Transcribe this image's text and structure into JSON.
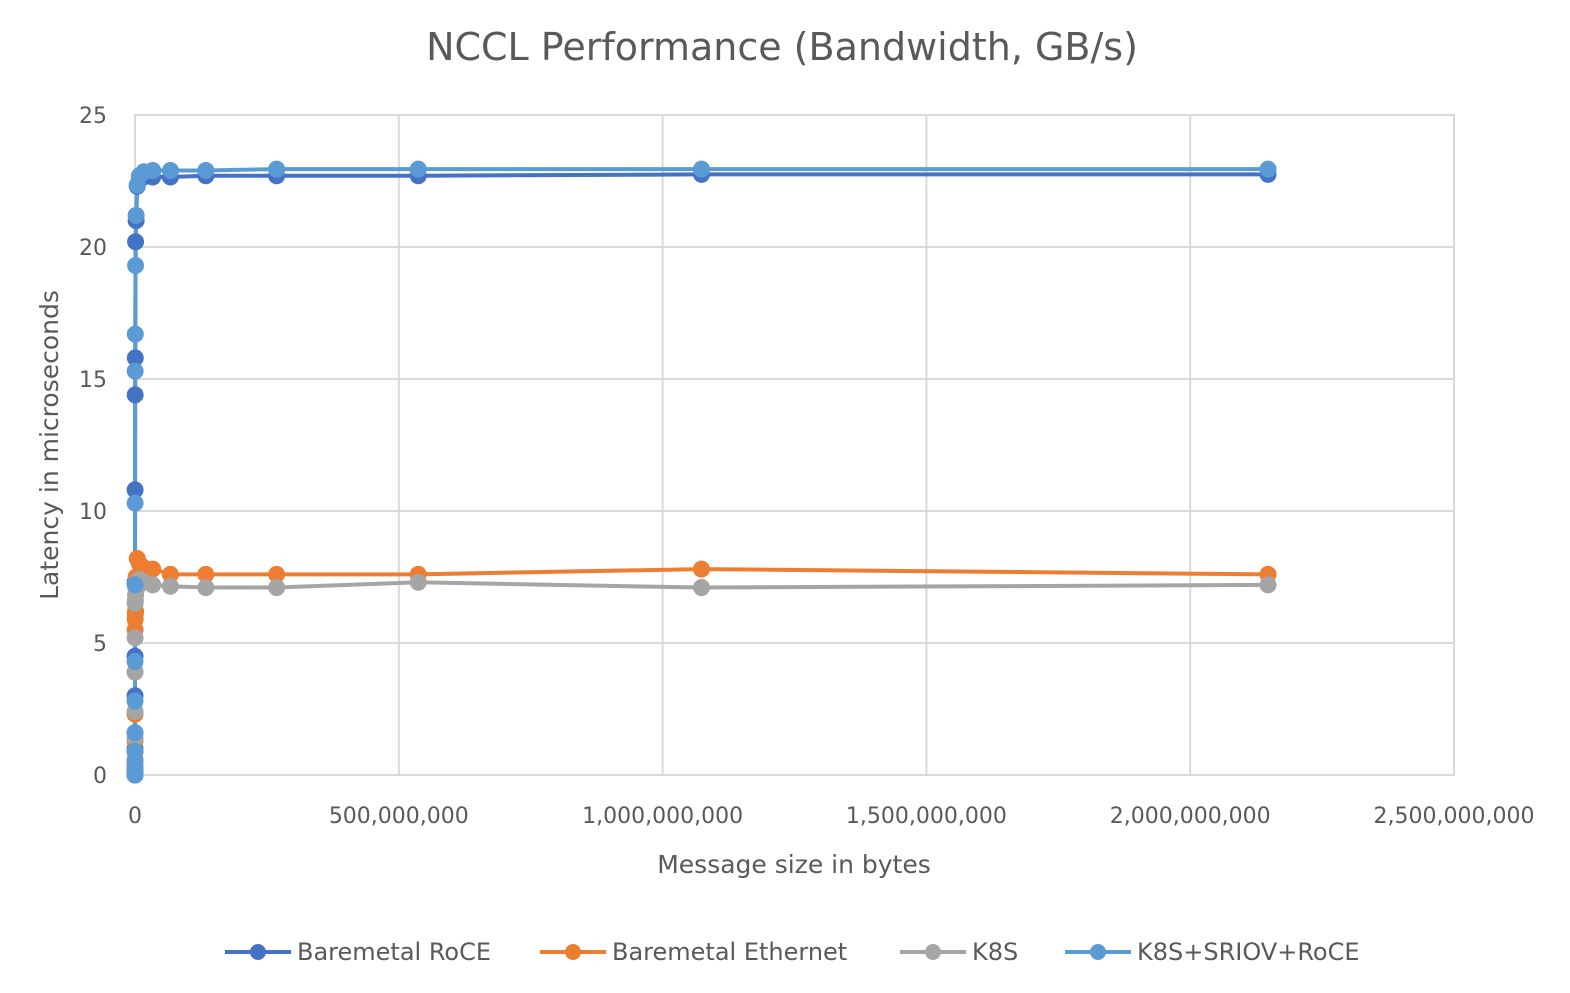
{
  "chart_data": {
    "type": "line",
    "title": "NCCL Performance  (Bandwidth, GB/s)",
    "xlabel": "Message size in bytes",
    "ylabel": "Latency in microseconds",
    "xlim": [
      0,
      2500000000
    ],
    "ylim": [
      0,
      25
    ],
    "x_ticks": [
      0,
      500000000,
      1000000000,
      1500000000,
      2000000000,
      2500000000
    ],
    "x_tick_labels": [
      "0",
      "500,000,000",
      "1,000,000,000",
      "1,500,000,000",
      "2,000,000,000",
      "2,500,000,000"
    ],
    "y_ticks": [
      0,
      5,
      10,
      15,
      20,
      25
    ],
    "y_tick_labels": [
      "0",
      "5",
      "10",
      "15",
      "20",
      "25"
    ],
    "grid": true,
    "legend_position": "bottom",
    "x": [
      8,
      16,
      32,
      64,
      128,
      256,
      512,
      1024,
      2048,
      4096,
      8192,
      16384,
      32768,
      65536,
      131072,
      262144,
      524288,
      1048576,
      2097152,
      4194304,
      8388608,
      16777216,
      33554432,
      67108864,
      134217728,
      268435456,
      536870912,
      1073741824,
      2147483648
    ],
    "series": [
      {
        "name": "Baremetal RoCE",
        "color": "#4472C4",
        "values": [
          0.0,
          0.0,
          0.01,
          0.02,
          0.03,
          0.06,
          0.12,
          0.25,
          0.5,
          1.0,
          1.6,
          3.0,
          4.5,
          7.3,
          10.8,
          14.4,
          15.8,
          20.2,
          21.0,
          22.3,
          22.6,
          22.65,
          22.65,
          22.65,
          22.7,
          22.7,
          22.7,
          22.75,
          22.75
        ]
      },
      {
        "name": "Baremetal Ethernet",
        "color": "#ED7D31",
        "values": [
          0.0,
          0.0,
          0.01,
          0.01,
          0.02,
          0.04,
          0.08,
          0.15,
          0.3,
          0.6,
          0.9,
          1.3,
          2.3,
          3.9,
          5.5,
          5.9,
          6.1,
          6.2,
          7.5,
          8.2,
          8.0,
          7.85,
          7.8,
          7.6,
          7.6,
          7.6,
          7.6,
          7.8,
          7.6
        ]
      },
      {
        "name": "K8S",
        "color": "#A5A5A5",
        "values": [
          0.0,
          0.0,
          0.01,
          0.01,
          0.02,
          0.04,
          0.08,
          0.15,
          0.3,
          0.6,
          0.9,
          1.4,
          2.4,
          3.9,
          5.2,
          6.5,
          6.6,
          6.8,
          7.0,
          7.35,
          7.4,
          7.3,
          7.2,
          7.15,
          7.1,
          7.1,
          7.3,
          7.1,
          7.2
        ]
      },
      {
        "name": "K8S+SRIOV+RoCE",
        "color": "#5B9BD5",
        "values": [
          0.0,
          0.0,
          0.01,
          0.02,
          0.03,
          0.06,
          0.12,
          0.25,
          0.5,
          0.9,
          1.6,
          2.8,
          4.3,
          7.2,
          10.3,
          15.3,
          16.7,
          19.3,
          21.2,
          22.35,
          22.7,
          22.85,
          22.9,
          22.9,
          22.9,
          22.95,
          22.95,
          22.95,
          22.95
        ]
      }
    ]
  }
}
